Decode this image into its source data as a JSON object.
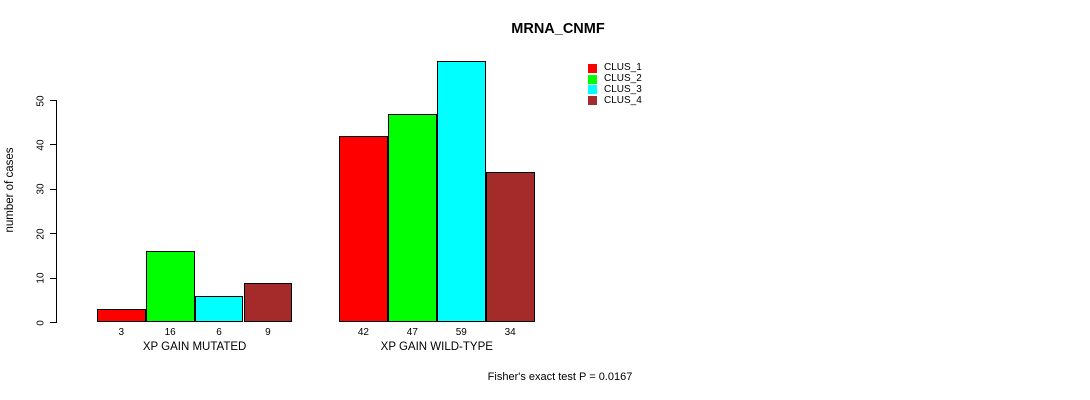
{
  "page": {
    "background": "#ffffff",
    "axis_color": "#000000",
    "text_color": "#000000"
  },
  "chart_data": {
    "type": "bar",
    "title": "MRNA_CNMF",
    "xlabel": "",
    "ylabel": "number of cases",
    "categories": [
      "XP GAIN MUTATED",
      "XP GAIN WILD-TYPE"
    ],
    "series": [
      {
        "name": "CLUS_1",
        "color": "#ff0000",
        "values": [
          3,
          42
        ]
      },
      {
        "name": "CLUS_2",
        "color": "#00ff00",
        "values": [
          16,
          47
        ]
      },
      {
        "name": "CLUS_3",
        "color": "#00ffff",
        "values": [
          6,
          59
        ]
      },
      {
        "name": "CLUS_4",
        "color": "#a52a2a",
        "values": [
          9,
          34
        ]
      }
    ],
    "show_bar_values": true,
    "yticks": [
      0,
      10,
      20,
      30,
      40,
      50
    ],
    "ylim": [
      0,
      59
    ],
    "grid": false,
    "legend_position": "top-right",
    "legend_entries": [
      "CLUS_1",
      "CLUS_2",
      "CLUS_3",
      "CLUS_4"
    ],
    "annotation": "Fisher's exact test P = 0.0167"
  }
}
